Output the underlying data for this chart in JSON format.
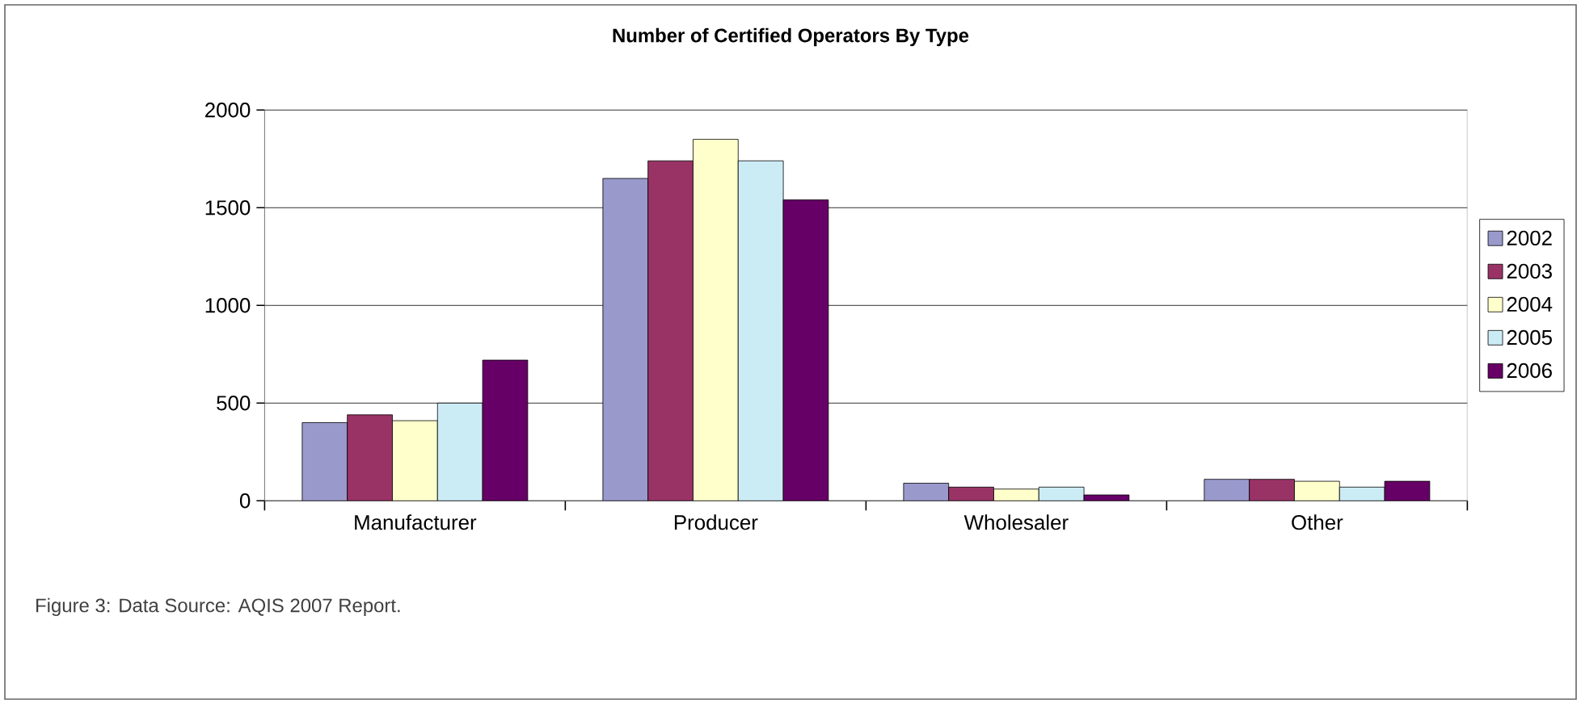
{
  "chart_data": {
    "type": "bar",
    "title": "Number of Certified Operators By Type",
    "categories": [
      "Manufacturer",
      "Producer",
      "Wholesaler",
      "Other"
    ],
    "series": [
      {
        "name": "2002",
        "color": "#9999cc",
        "values": [
          400,
          1650,
          90,
          110
        ]
      },
      {
        "name": "2003",
        "color": "#993366",
        "values": [
          440,
          1740,
          70,
          110
        ]
      },
      {
        "name": "2004",
        "color": "#ffffcc",
        "values": [
          410,
          1850,
          60,
          100
        ]
      },
      {
        "name": "2005",
        "color": "#ccecf5",
        "values": [
          500,
          1740,
          70,
          70
        ]
      },
      {
        "name": "2006",
        "color": "#660066",
        "values": [
          720,
          1540,
          30,
          100
        ]
      }
    ],
    "ylim": [
      0,
      2000
    ],
    "yticks": [
      0,
      500,
      1000,
      1500,
      2000
    ],
    "grid": "y",
    "legend": "right",
    "annotations": [
      "Figure 3: Data Source: AQIS 2007 Report."
    ]
  }
}
